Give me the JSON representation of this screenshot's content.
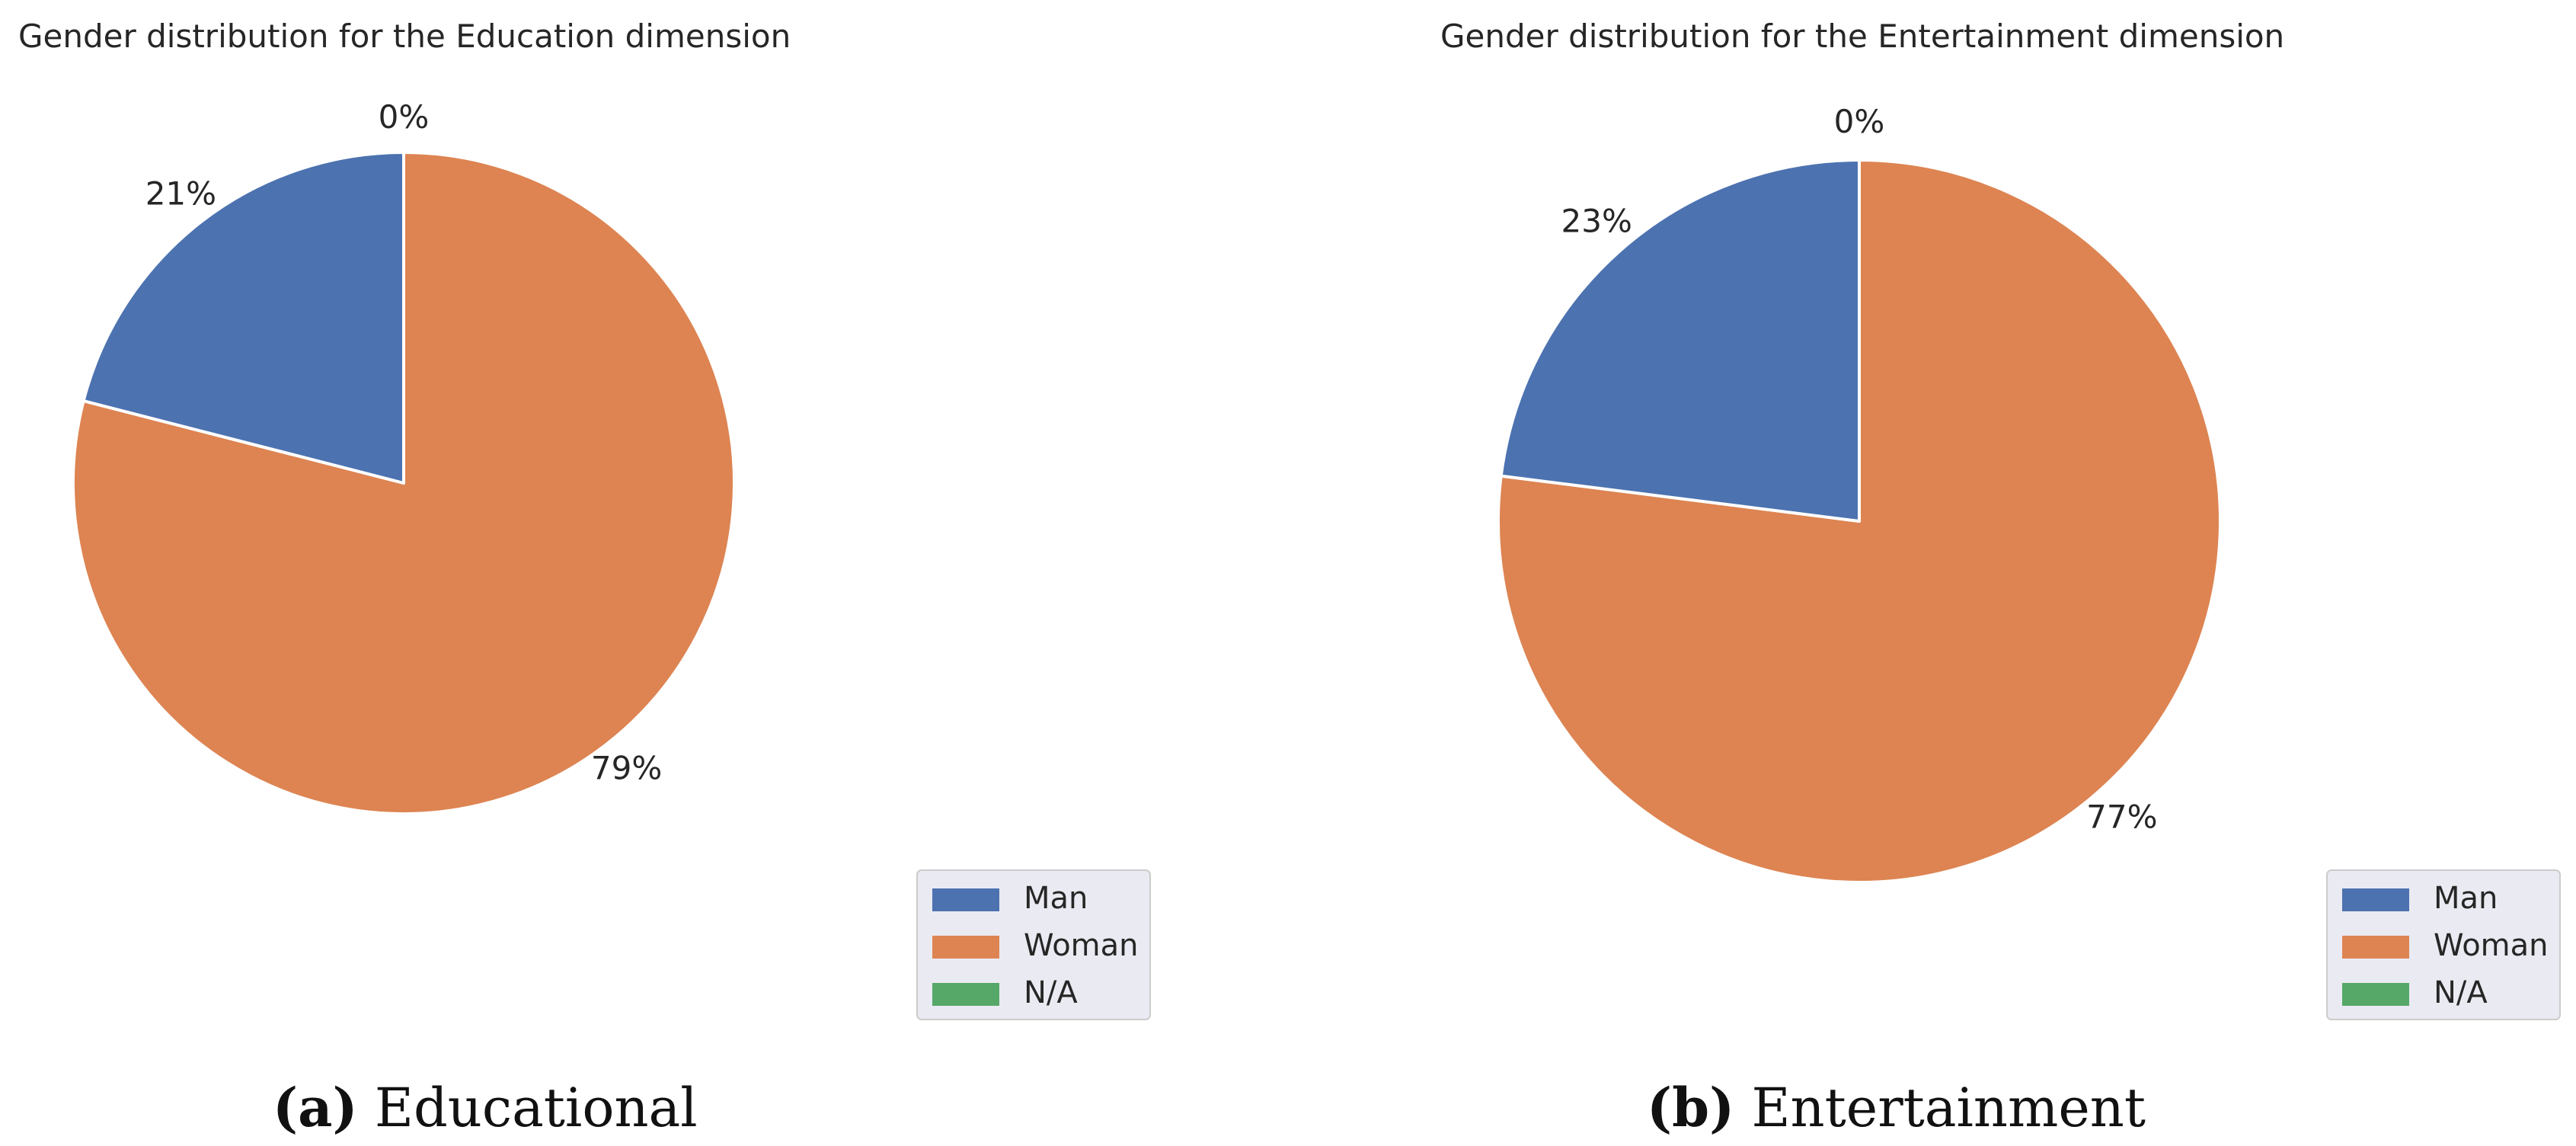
{
  "chart_data": [
    {
      "type": "pie",
      "title": "Gender distribution for the Education dimension",
      "caption_letter": "(a)",
      "caption_text": "Educational",
      "labels": [
        "Man",
        "Woman",
        "N/A"
      ],
      "values": [
        21,
        79,
        0
      ],
      "value_labels": [
        "21%",
        "79%",
        "0%"
      ],
      "colors": [
        "#4c72b0",
        "#dd8452",
        "#55a868"
      ],
      "start_angle": "12 o'clock, clockwise from Woman",
      "legend_position": "lower-right"
    },
    {
      "type": "pie",
      "title": "Gender distribution for the Entertainment dimension",
      "caption_letter": "(b)",
      "caption_text": "Entertainment",
      "labels": [
        "Man",
        "Woman",
        "N/A"
      ],
      "values": [
        23,
        77,
        0
      ],
      "value_labels": [
        "23%",
        "77%",
        "0%"
      ],
      "colors": [
        "#4c72b0",
        "#dd8452",
        "#55a868"
      ],
      "start_angle": "12 o'clock, clockwise from Woman",
      "legend_position": "lower-right"
    }
  ]
}
